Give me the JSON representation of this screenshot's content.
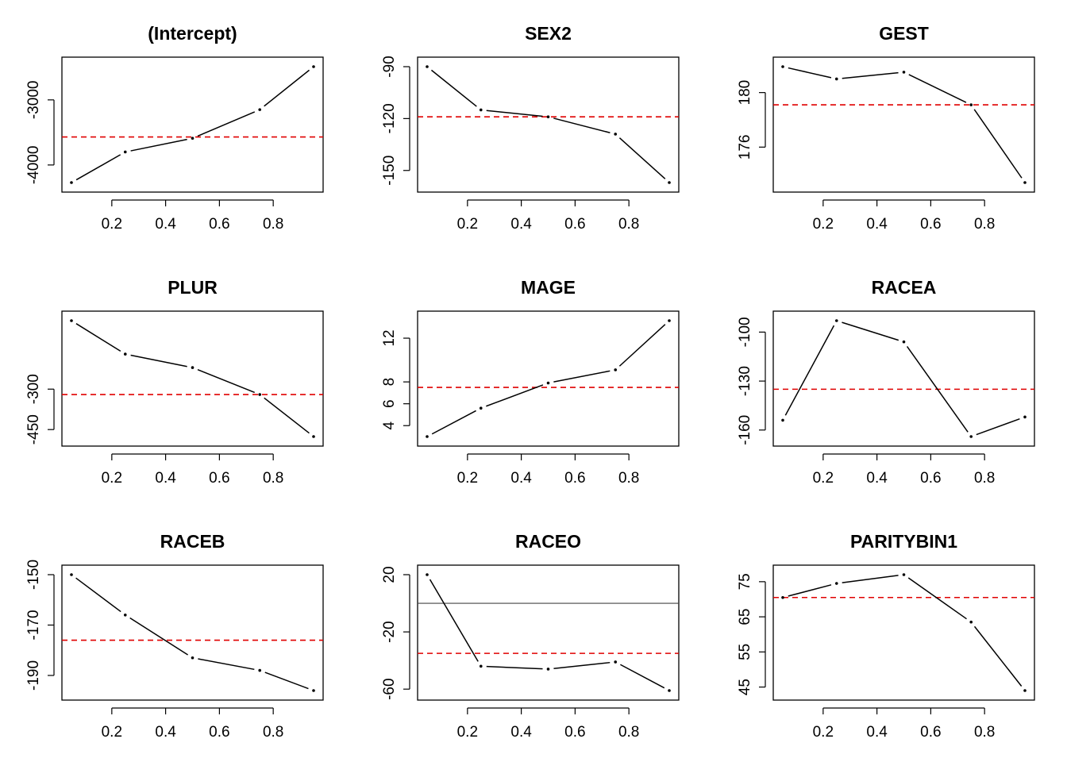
{
  "figure": {
    "colors": {
      "line": "#000000",
      "reference": "#e00000",
      "zero": "#444444",
      "frame": "#000000"
    },
    "panels": [
      {
        "title": "(Intercept)",
        "reference": -3570,
        "zero_line": false,
        "xticks": [
          "0.2",
          "0.4",
          "0.6",
          "0.8"
        ],
        "yticks": [
          "-3000",
          "-4000"
        ]
      },
      {
        "title": "SEX2",
        "reference": -119,
        "zero_line": false,
        "xticks": [
          "0.2",
          "0.4",
          "0.6",
          "0.8"
        ],
        "yticks": [
          "-90",
          "-120",
          "-150"
        ]
      },
      {
        "title": "GEST",
        "reference": 179.1,
        "zero_line": false,
        "xticks": [
          "0.2",
          "0.4",
          "0.6",
          "0.8"
        ],
        "yticks": [
          "180",
          "176"
        ]
      },
      {
        "title": "PLUR",
        "reference": -320,
        "zero_line": false,
        "xticks": [
          "0.2",
          "0.4",
          "0.6",
          "0.8"
        ],
        "yticks": [
          "-300",
          "-450"
        ]
      },
      {
        "title": "MAGE",
        "reference": 7.5,
        "zero_line": false,
        "xticks": [
          "0.2",
          "0.4",
          "0.6",
          "0.8"
        ],
        "yticks": [
          "12",
          "8",
          "6",
          "4"
        ]
      },
      {
        "title": "RACEA",
        "reference": -135,
        "zero_line": false,
        "xticks": [
          "0.2",
          "0.4",
          "0.6",
          "0.8"
        ],
        "yticks": [
          "-100",
          "-130",
          "-160"
        ]
      },
      {
        "title": "RACEB",
        "reference": -176,
        "zero_line": false,
        "xticks": [
          "0.2",
          "0.4",
          "0.6",
          "0.8"
        ],
        "yticks": [
          "-150",
          "-170",
          "-190"
        ]
      },
      {
        "title": "RACEO",
        "reference": -35,
        "zero_line": true,
        "xticks": [
          "0.2",
          "0.4",
          "0.6",
          "0.8"
        ],
        "yticks": [
          "20",
          "-20",
          "-60"
        ]
      },
      {
        "title": "PARITYBIN1",
        "reference": 70.5,
        "zero_line": false,
        "xticks": [
          "0.2",
          "0.4",
          "0.6",
          "0.8"
        ],
        "yticks": [
          "75",
          "65",
          "55",
          "45"
        ]
      }
    ]
  },
  "chart_data": [
    {
      "type": "line",
      "title": "(Intercept)",
      "xlim": [
        0.05,
        0.95
      ],
      "ylim": [
        -4270,
        -2490
      ],
      "x": [
        0.05,
        0.25,
        0.5,
        0.75,
        0.95
      ],
      "y": [
        -4270,
        -3800,
        -3590,
        -3150,
        -2490
      ],
      "yticks": [
        -3000,
        -4000
      ],
      "reference_line": -3570
    },
    {
      "type": "line",
      "title": "SEX2",
      "xlim": [
        0.05,
        0.95
      ],
      "ylim": [
        -157,
        -90
      ],
      "x": [
        0.05,
        0.25,
        0.5,
        0.75,
        0.95
      ],
      "y": [
        -90,
        -115,
        -119,
        -129,
        -157
      ],
      "yticks": [
        -90,
        -120,
        -150
      ],
      "reference_line": -119
    },
    {
      "type": "line",
      "title": "GEST",
      "xlim": [
        0.05,
        0.95
      ],
      "ylim": [
        173.4,
        181.9
      ],
      "x": [
        0.05,
        0.25,
        0.5,
        0.75,
        0.95
      ],
      "y": [
        181.9,
        181.0,
        181.5,
        179.1,
        173.4
      ],
      "yticks": [
        180,
        176
      ],
      "reference_line": 179.1
    },
    {
      "type": "line",
      "title": "PLUR",
      "xlim": [
        0.05,
        0.95
      ],
      "ylim": [
        -476,
        -46
      ],
      "x": [
        0.05,
        0.25,
        0.5,
        0.75,
        0.95
      ],
      "y": [
        -46,
        -170,
        -220,
        -320,
        -476
      ],
      "yticks": [
        -300,
        -450
      ],
      "reference_line": -320
    },
    {
      "type": "line",
      "title": "MAGE",
      "xlim": [
        0.05,
        0.95
      ],
      "ylim": [
        3.0,
        13.6
      ],
      "x": [
        0.05,
        0.25,
        0.5,
        0.75,
        0.95
      ],
      "y": [
        3.0,
        5.6,
        7.9,
        9.1,
        13.6
      ],
      "yticks": [
        12,
        8,
        6,
        4
      ],
      "reference_line": 7.5
    },
    {
      "type": "line",
      "title": "RACEA",
      "xlim": [
        0.05,
        0.95
      ],
      "ylim": [
        -164,
        -93
      ],
      "x": [
        0.05,
        0.25,
        0.5,
        0.75,
        0.95
      ],
      "y": [
        -154,
        -93,
        -106,
        -164,
        -152
      ],
      "yticks": [
        -100,
        -130,
        -160
      ],
      "reference_line": -135
    },
    {
      "type": "line",
      "title": "RACEB",
      "xlim": [
        0.05,
        0.95
      ],
      "ylim": [
        -196,
        -150
      ],
      "x": [
        0.05,
        0.25,
        0.5,
        0.75,
        0.95
      ],
      "y": [
        -150,
        -166,
        -183,
        -188,
        -196
      ],
      "yticks": [
        -150,
        -170,
        -190
      ],
      "reference_line": -176
    },
    {
      "type": "line",
      "title": "RACEO",
      "xlim": [
        0.05,
        0.95
      ],
      "ylim": [
        -61,
        20
      ],
      "x": [
        0.05,
        0.25,
        0.5,
        0.75,
        0.95
      ],
      "y": [
        20,
        -44,
        -46,
        -41,
        -61
      ],
      "yticks": [
        20,
        -20,
        -60
      ],
      "reference_line": -35,
      "zero_line": 0
    },
    {
      "type": "line",
      "title": "PARITYBIN1",
      "xlim": [
        0.05,
        0.95
      ],
      "ylim": [
        44,
        77
      ],
      "x": [
        0.05,
        0.25,
        0.5,
        0.75,
        0.95
      ],
      "y": [
        70.5,
        74.5,
        77,
        63.5,
        44
      ],
      "yticks": [
        75,
        65,
        55,
        45
      ],
      "reference_line": 70.5
    }
  ]
}
